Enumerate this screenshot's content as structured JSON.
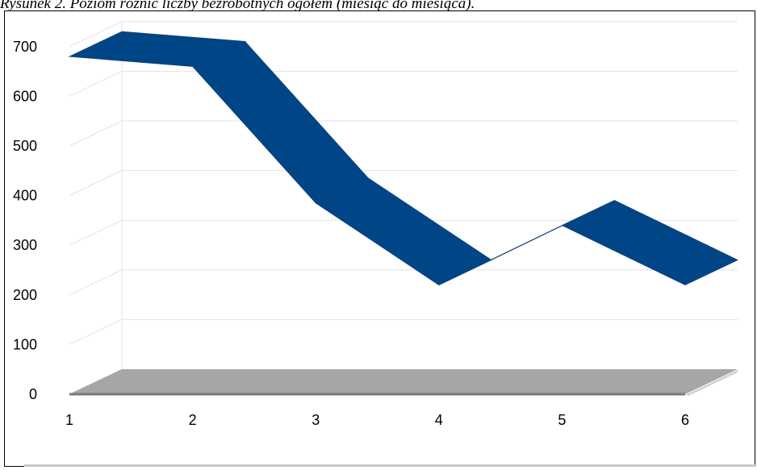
{
  "caption": "Rysunek 2. Poziom różnic liczby bezrobotnych ogółem (miesiąc do miesiąca).",
  "chart_data": {
    "type": "line",
    "style": "3d-ribbon",
    "title": "",
    "xlabel": "",
    "ylabel": "",
    "categories": [
      "1",
      "2",
      "3",
      "4",
      "5",
      "6"
    ],
    "series": [
      {
        "values": [
          680,
          660,
          385,
          220,
          340,
          220
        ],
        "color": "#004586"
      }
    ],
    "ylim": [
      0,
      700
    ],
    "yticks": [
      "0",
      "100",
      "200",
      "300",
      "400",
      "500",
      "600",
      "700"
    ],
    "grid": true,
    "legend": "none",
    "colors": {
      "ribbon_top": "#0b3f7d",
      "ribbon_front": "#004586",
      "floor": "#a6a6a6",
      "grid": "#e3e3e3"
    }
  }
}
